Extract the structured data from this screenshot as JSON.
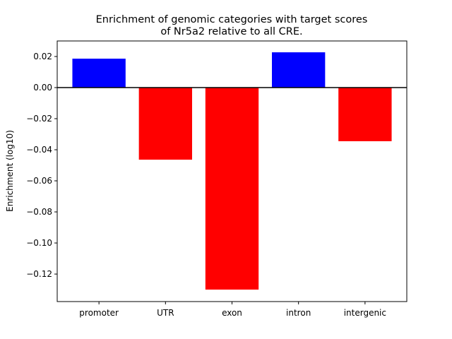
{
  "chart_data": {
    "type": "bar",
    "title": [
      "Enrichment of genomic categories with target scores",
      "of Nr5a2 relative to all CRE."
    ],
    "xlabel": "",
    "ylabel": "Enrichment (log10)",
    "categories": [
      "promoter",
      "UTR",
      "exon",
      "intron",
      "intergenic"
    ],
    "values": [
      0.0186,
      -0.0464,
      -0.13,
      0.0227,
      -0.0345
    ],
    "ylim": [
      -0.1377,
      0.03
    ],
    "yticks": [
      0.02,
      0.0,
      -0.02,
      -0.04,
      -0.06,
      -0.08,
      -0.1,
      -0.12
    ],
    "ytick_labels": [
      "0.02",
      "0.00",
      "−0.02",
      "−0.04",
      "−0.06",
      "−0.08",
      "−0.10",
      "−0.12"
    ],
    "grid": false,
    "colors": {
      "positive": "#0000ff",
      "negative": "#ff0000",
      "zero_line": "#000000"
    }
  }
}
